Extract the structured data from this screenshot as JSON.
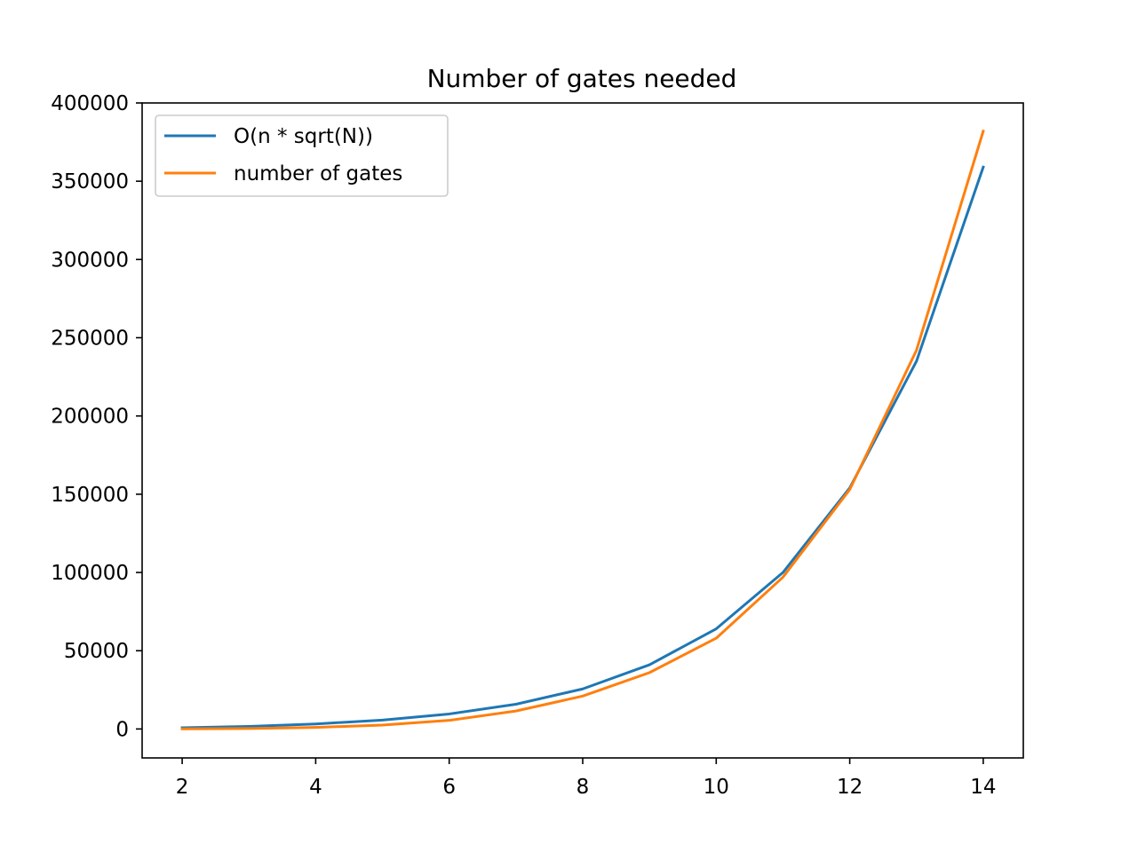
{
  "chart_data": {
    "type": "line",
    "title": "Number of gates needed",
    "xlabel": "",
    "ylabel": "",
    "x": [
      2,
      3,
      4,
      5,
      6,
      7,
      8,
      9,
      10,
      11,
      12,
      13,
      14
    ],
    "series": [
      {
        "name": "O(n * sqrt(N))",
        "color": "#1f77b4",
        "values": [
          800,
          1600,
          3200,
          5700,
          9600,
          15800,
          25600,
          41000,
          64000,
          100000,
          154000,
          235000,
          359000
        ]
      },
      {
        "name": "number of gates",
        "color": "#ff7f0e",
        "values": [
          100,
          300,
          1000,
          2500,
          5500,
          11500,
          21000,
          36000,
          58000,
          97000,
          153000,
          242000,
          382000
        ]
      }
    ],
    "xlim": [
      1.4,
      14.6
    ],
    "ylim": [
      -18500,
      400000
    ],
    "xticks": [
      "2",
      "4",
      "6",
      "8",
      "10",
      "12",
      "14"
    ],
    "yticks": [
      "0",
      "50000",
      "100000",
      "150000",
      "200000",
      "250000",
      "300000",
      "350000",
      "400000"
    ],
    "grid": false,
    "legend_position": "top-left"
  }
}
